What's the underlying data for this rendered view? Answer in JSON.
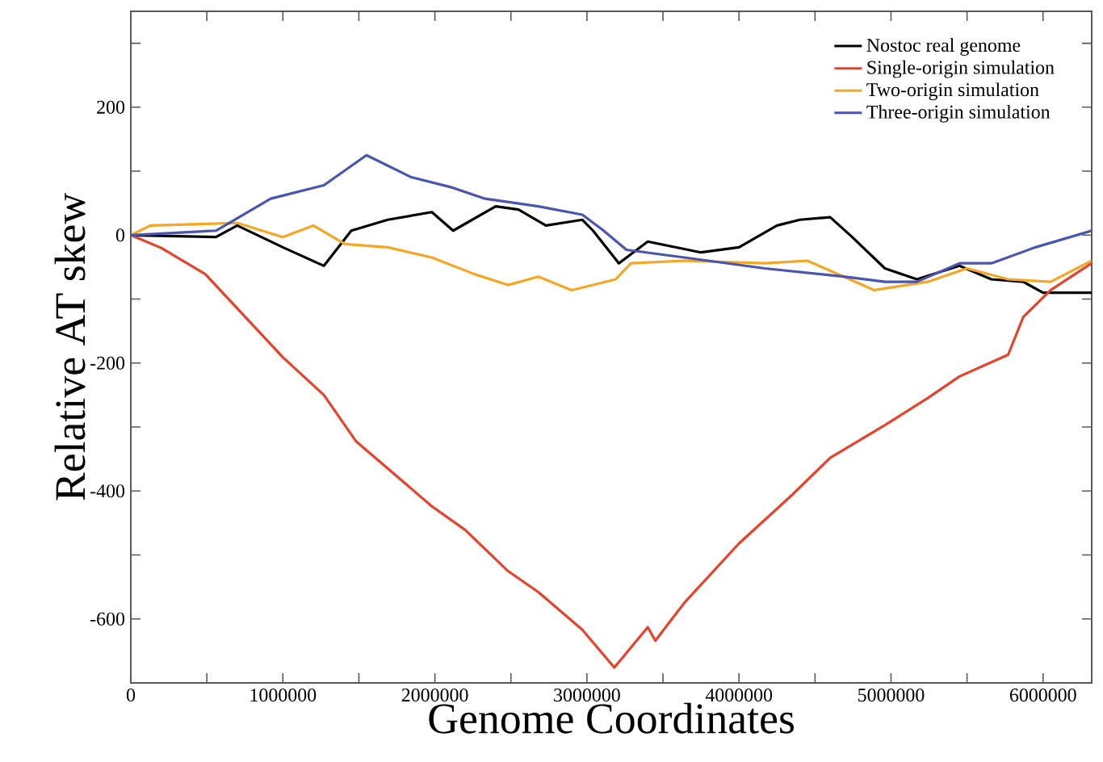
{
  "chart_data": {
    "type": "line",
    "xlabel": "Genome Coordinates",
    "ylabel": "Relative AT skew",
    "xlim": [
      0,
      6320000
    ],
    "ylim": [
      -700,
      350
    ],
    "xticks": [
      0,
      {
        "value": 500000,
        "label": null
      },
      1000000,
      {
        "value": 1500000,
        "label": null
      },
      2000000,
      {
        "value": 2500000,
        "label": null
      },
      3000000,
      {
        "value": 3500000,
        "label": null
      },
      4000000,
      {
        "value": 4500000,
        "label": null
      },
      5000000,
      {
        "value": 5500000,
        "label": null
      },
      6000000
    ],
    "yticks": [
      {
        "value": -700,
        "label": null
      },
      -600,
      {
        "value": -500,
        "label": null
      },
      -400,
      {
        "value": -300,
        "label": null
      },
      -200,
      {
        "value": -100,
        "label": null
      },
      0,
      {
        "value": 100,
        "label": null
      },
      200,
      {
        "value": 300,
        "label": null
      }
    ],
    "legend": "top right",
    "grid": false,
    "marker": "none",
    "line_style": "solid",
    "series": [
      {
        "name": "Nostoc real genome",
        "color": "#000000",
        "x": [
          0,
          560000,
          700000,
          1000000,
          1270000,
          1450000,
          1690000,
          1980000,
          2120000,
          2400000,
          2550000,
          2730000,
          2970000,
          3040000,
          3210000,
          3400000,
          3750000,
          4000000,
          4250000,
          4400000,
          4600000,
          4740000,
          4960000,
          5170000,
          5450000,
          5660000,
          5870000,
          6000000,
          6320000
        ],
        "values": [
          0,
          -3,
          15,
          -19,
          -48,
          7,
          24,
          36,
          7,
          45,
          40,
          15,
          24,
          7,
          -44,
          -10,
          -27,
          -19,
          15,
          24,
          28,
          -2,
          -52,
          -69,
          -48,
          -69,
          -73,
          -90,
          -90
        ]
      },
      {
        "name": "Single-origin simulation",
        "color": "#e8432a",
        "x": [
          0,
          200000,
          490000,
          1000000,
          1270000,
          1480000,
          1980000,
          2200000,
          2480000,
          2680000,
          2970000,
          3180000,
          3400000,
          3450000,
          3640000,
          4000000,
          4350000,
          4600000,
          4960000,
          5240000,
          5450000,
          5770000,
          5870000,
          6050000,
          6320000
        ],
        "values": [
          0,
          -20,
          -61,
          -191,
          -250,
          -322,
          -424,
          -461,
          -525,
          -558,
          -617,
          -676,
          -613,
          -634,
          -575,
          -482,
          -406,
          -348,
          -297,
          -255,
          -221,
          -187,
          -128,
          -86,
          -44
        ]
      },
      {
        "name": "Two-origin simulation",
        "color": "#f5a623",
        "x": [
          0,
          130000,
          700000,
          1000000,
          1200000,
          1410000,
          1690000,
          1980000,
          2260000,
          2480000,
          2680000,
          2900000,
          3190000,
          3290000,
          3640000,
          4170000,
          4450000,
          4890000,
          5240000,
          5500000,
          5770000,
          6050000,
          6320000
        ],
        "values": [
          0,
          15,
          19,
          -3,
          15,
          -14,
          -19,
          -35,
          -61,
          -78,
          -65,
          -86,
          -69,
          -44,
          -40,
          -44,
          -40,
          -86,
          -73,
          -52,
          -69,
          -73,
          -40
        ]
      },
      {
        "name": "Three-origin simulation",
        "color": "#4a55b0",
        "x": [
          0,
          560000,
          920000,
          1270000,
          1550000,
          1840000,
          2120000,
          2330000,
          2680000,
          2970000,
          3110000,
          3260000,
          3640000,
          4170000,
          4700000,
          4960000,
          5170000,
          5450000,
          5660000,
          5950000,
          6320000
        ],
        "values": [
          0,
          7,
          57,
          78,
          125,
          91,
          74,
          57,
          45,
          32,
          7,
          -23,
          -35,
          -52,
          -65,
          -73,
          -73,
          -44,
          -44,
          -19,
          7
        ]
      }
    ]
  }
}
